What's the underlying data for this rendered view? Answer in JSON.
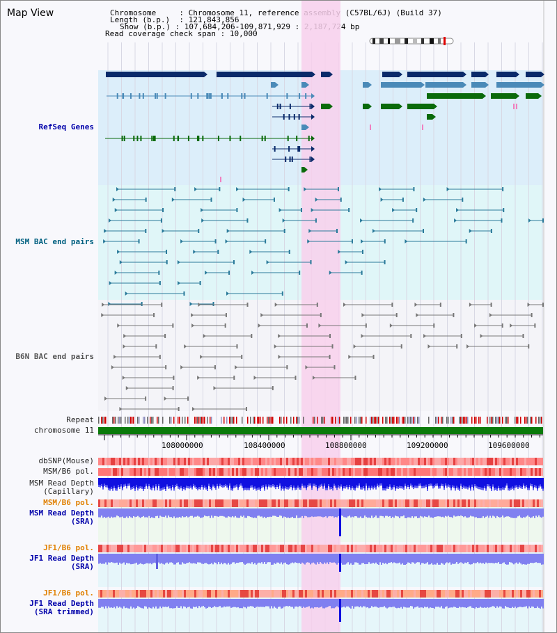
{
  "view_title": "Map View",
  "info": {
    "chromosome_key": "Chromosome     ",
    "chromosome_value": "Chromosome 11, reference assembly (C57BL/6J) (Build 37)",
    "length_key": "Length (b.p.)",
    "length_value": "121,843,856",
    "show_key": "Show (b.p.)",
    "show_value": "107,684,206-109,871,929 : 2,187,724 bp",
    "coverage_key": "Read coverage check span",
    "coverage_value": "10,000"
  },
  "tracks": {
    "refseq": "RefSeq Genes",
    "msm_bac": "MSM BAC end pairs",
    "b6n_bac": "B6N BAC end pairs",
    "repeat": "Repeat",
    "chromosome": "chromosome 11",
    "dbsnp": "dbSNP(Mouse)",
    "msm_b6_pol": "MSM/B6 pol.",
    "msm_read_depth_cap_1": "MSM Read Depth",
    "msm_read_depth_cap_2": "(Capillary)",
    "msm_b6_pol_2": "MSM/B6 pol.",
    "msm_read_depth_sra_1": "MSM Read Depth",
    "msm_read_depth_sra_2": "(SRA)",
    "jf1_b6_pol": "JF1/B6 pol.",
    "jf1_read_depth_1": "JF1 Read Depth",
    "jf1_read_depth_2": "(SRA)",
    "jf1_b6_pol_2": "JF1/B6 pol.",
    "jf1_trim_1": "JF1 Read Depth",
    "jf1_trim_2": "(SRA trimmed)"
  },
  "axis_ticks": [
    "108000000",
    "108400000",
    "108800000",
    "109200000",
    "109600000"
  ],
  "colors": {
    "refseq_dark": "#0a2a6a",
    "refseq_mid": "#4a8ab8",
    "refseq_green": "#0a6a0a",
    "highlight": "#f8d0ec",
    "depth_blue": "#1010e0",
    "depth_light": "#8080f0",
    "pol_red": "#f06060"
  }
}
